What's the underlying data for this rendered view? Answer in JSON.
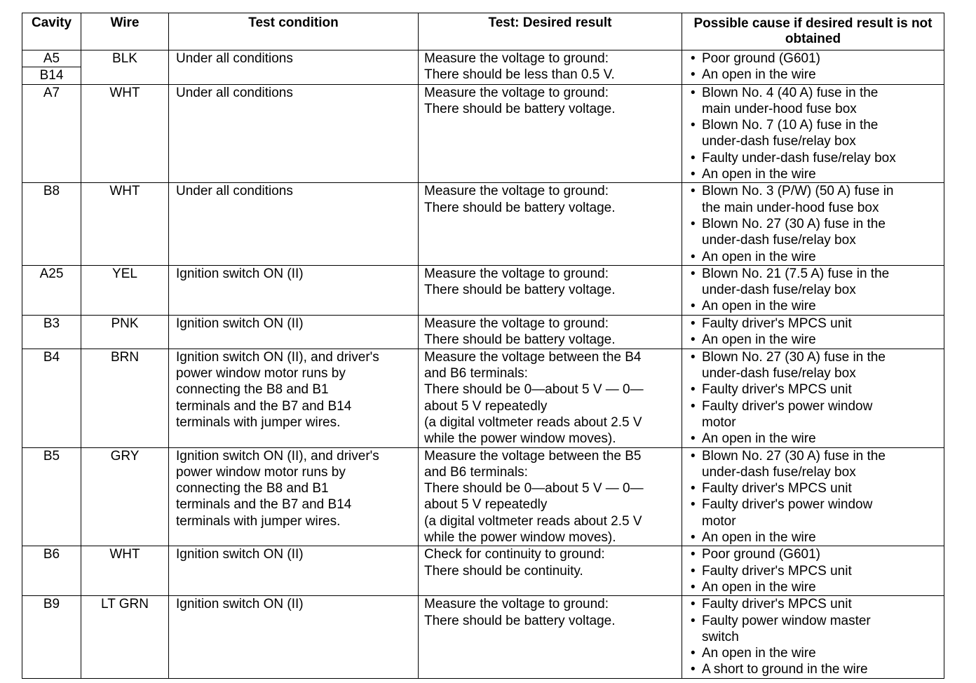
{
  "headers": [
    "Cavity",
    "Wire",
    "Test condition",
    "Test: Desired result",
    "Possible cause if desired result is not obtained"
  ],
  "rows": [
    {
      "cavity": [
        "A5",
        "B14"
      ],
      "wire": "BLK",
      "condition": [
        "Under all conditions"
      ],
      "result": [
        "Measure the voltage to ground:",
        "There should be less than 0.5 V."
      ],
      "causes": [
        [
          "Poor ground (G601)"
        ],
        [
          "An open in the wire"
        ]
      ]
    },
    {
      "cavity": [
        "A7"
      ],
      "wire": "WHT",
      "condition": [
        "Under all conditions"
      ],
      "result": [
        "Measure the voltage to ground:",
        "There should be battery voltage."
      ],
      "causes": [
        [
          "Blown No. 4 (40 A) fuse in the",
          "main under-hood fuse box"
        ],
        [
          "Blown No. 7 (10 A) fuse in the",
          "under-dash fuse/relay box"
        ],
        [
          "Faulty under-dash fuse/relay box"
        ],
        [
          "An open in the wire"
        ]
      ]
    },
    {
      "cavity": [
        "B8"
      ],
      "wire": "WHT",
      "condition": [
        "Under all conditions"
      ],
      "result": [
        "Measure the voltage to ground:",
        "There should be battery voltage."
      ],
      "causes": [
        [
          "Blown No. 3 (P/W) (50 A) fuse in",
          "the main under-hood fuse box"
        ],
        [
          "Blown No. 27 (30 A) fuse in the",
          "under-dash fuse/relay box"
        ],
        [
          "An open in the wire"
        ]
      ]
    },
    {
      "cavity": [
        "A25"
      ],
      "wire": "YEL",
      "condition": [
        "Ignition switch ON (II)"
      ],
      "result": [
        "Measure the voltage to ground:",
        "There should be battery voltage."
      ],
      "causes": [
        [
          "Blown No. 21 (7.5 A) fuse in the",
          "under-dash fuse/relay box"
        ],
        [
          "An open in the wire"
        ]
      ]
    },
    {
      "cavity": [
        "B3"
      ],
      "wire": "PNK",
      "condition": [
        "Ignition switch ON (II)"
      ],
      "result": [
        "Measure the voltage to ground:",
        "There should be battery voltage."
      ],
      "causes": [
        [
          "Faulty driver's MPCS unit"
        ],
        [
          "An open in the wire"
        ]
      ]
    },
    {
      "cavity": [
        "B4"
      ],
      "wire": "BRN",
      "condition": [
        "Ignition switch ON (II), and driver's",
        "power window motor runs by",
        "connecting the B8 and B1",
        "terminals and the B7 and B14",
        "terminals with jumper wires."
      ],
      "result": [
        "Measure the voltage between the B4",
        "and B6 terminals:",
        "There should be 0—about 5 V — 0—",
        "about 5 V repeatedly",
        "(a digital voltmeter reads about 2.5 V",
        "while the power window moves)."
      ],
      "causes": [
        [
          "Blown No. 27 (30 A) fuse in the",
          "under-dash fuse/relay box"
        ],
        [
          "Faulty driver's MPCS unit"
        ],
        [
          "Faulty driver's power window",
          "motor"
        ],
        [
          "An open in the wire"
        ]
      ]
    },
    {
      "cavity": [
        "B5"
      ],
      "wire": "GRY",
      "condition": [
        "Ignition switch ON (II), and driver's",
        "power window motor runs by",
        "connecting the B8 and B1",
        "terminals and the B7 and B14",
        "terminals with jumper wires."
      ],
      "result": [
        "Measure the voltage between the B5",
        "and B6 terminals:",
        "There should be 0—about 5 V — 0—",
        "about 5 V repeatedly",
        "(a digital voltmeter reads about 2.5 V",
        "while the power window moves)."
      ],
      "causes": [
        [
          "Blown No. 27 (30 A) fuse in the",
          "under-dash fuse/relay box"
        ],
        [
          "Faulty driver's MPCS unit"
        ],
        [
          "Faulty driver's power window",
          "motor"
        ],
        [
          "An open in the wire"
        ]
      ]
    },
    {
      "cavity": [
        "B6"
      ],
      "wire": "WHT",
      "condition": [
        "Ignition switch ON (II)"
      ],
      "result": [
        "Check for continuity to ground:",
        "There should be continuity."
      ],
      "causes": [
        [
          "Poor ground (G601)"
        ],
        [
          "Faulty driver's MPCS unit"
        ],
        [
          "An open in the wire"
        ]
      ]
    },
    {
      "cavity": [
        "B9"
      ],
      "wire": "LT GRN",
      "condition": [
        "Ignition switch ON (II)"
      ],
      "result": [
        "Measure the voltage to ground:",
        "There should be battery voltage."
      ],
      "causes": [
        [
          "Faulty driver's MPCS unit"
        ],
        [
          "Faulty power window master",
          "switch"
        ],
        [
          "An open in the wire"
        ],
        [
          "A short to ground in the wire"
        ]
      ]
    }
  ]
}
